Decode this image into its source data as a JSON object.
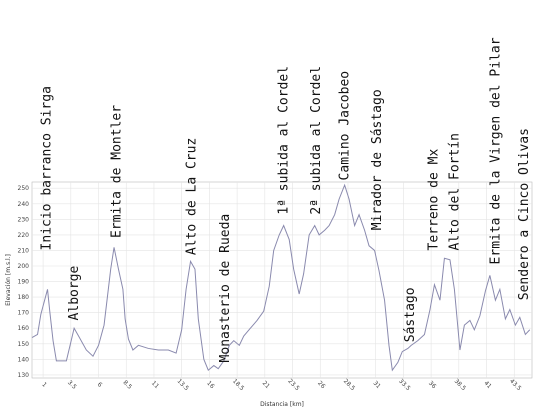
{
  "chart_data": {
    "type": "line",
    "xlabel": "Distancia [km]",
    "ylabel": "Elevación [m.s.l.]",
    "x": [
      0,
      0.5,
      0.8,
      1.4,
      1.6,
      1.9,
      2.2,
      3.1,
      3.8,
      4.2,
      4.9,
      5.5,
      6.0,
      6.5,
      7.1,
      7.4,
      7.8,
      8.2,
      8.4,
      8.7,
      9.1,
      9.6,
      10.5,
      11.4,
      12.3,
      13.0,
      13.5,
      13.9,
      14.3,
      14.7,
      15.0,
      15.5,
      15.9,
      16.4,
      16.8,
      17.3,
      17.8,
      18.2,
      18.7,
      19.1,
      19.7,
      20.3,
      20.9,
      21.4,
      21.8,
      22.3,
      22.7,
      23.2,
      23.6,
      24.1,
      24.5,
      25.0,
      25.5,
      25.9,
      26.4,
      26.8,
      27.3,
      27.7,
      28.2,
      28.6,
      29.1,
      29.5,
      30.0,
      30.4,
      30.9,
      31.3,
      31.8,
      32.2,
      32.5,
      33.0,
      33.4,
      33.9,
      34.2,
      34.8,
      35.4,
      35.9,
      36.3,
      36.8,
      37.2,
      37.7,
      38.1,
      38.6,
      39.0,
      39.5,
      39.9,
      40.4,
      40.9,
      41.3,
      41.8,
      42.2,
      42.7,
      43.1,
      43.6,
      44.0,
      44.5,
      44.9
    ],
    "series": [
      {
        "name": "Elevación",
        "color": "#8a8aae",
        "values": [
          154,
          156,
          169,
          185,
          171,
          152,
          139,
          139,
          160,
          155,
          146,
          142,
          149,
          162,
          198,
          212,
          198,
          185,
          166,
          153,
          146,
          149,
          147,
          146,
          146,
          144,
          159,
          185,
          203,
          198,
          166,
          140,
          133,
          136,
          134,
          139,
          149,
          152,
          149,
          155,
          160,
          165,
          171,
          187,
          210,
          220,
          226,
          217,
          198,
          182,
          195,
          220,
          226,
          220,
          223,
          226,
          233,
          243,
          252,
          243,
          226,
          233,
          223,
          213,
          210,
          197,
          178,
          149,
          133,
          138,
          145,
          147,
          149,
          152,
          156,
          172,
          188,
          178,
          205,
          204,
          185,
          146,
          162,
          165,
          159,
          168,
          184,
          194,
          178,
          185,
          166,
          172,
          162,
          167,
          156,
          159
        ]
      }
    ],
    "xlim": [
      0,
      45.1
    ],
    "ylim": [
      128,
      254
    ],
    "xticks": [
      1,
      3.5,
      6,
      8.5,
      11,
      13.5,
      16,
      18.5,
      21,
      23.5,
      26,
      28.5,
      31,
      33.5,
      36,
      38.5,
      41,
      43.5
    ],
    "yticks": [
      130,
      140,
      150,
      160,
      170,
      180,
      190,
      200,
      210,
      220,
      230,
      240,
      250
    ],
    "grid": true,
    "annotations": [
      {
        "text": "Inicio barranco Sirga",
        "x": 1.3,
        "y": 210
      },
      {
        "text": "Alborge",
        "x": 3.8,
        "y": 165
      },
      {
        "text": "Ermita de Montler",
        "x": 7.6,
        "y": 218
      },
      {
        "text": "Alto de La Cruz",
        "x": 14.4,
        "y": 207
      },
      {
        "text": "Monasterio de Rueda",
        "x": 17.4,
        "y": 138
      },
      {
        "text": "1ª subida al Cordel",
        "x": 22.7,
        "y": 233
      },
      {
        "text": "2ª subida al Cordel",
        "x": 25.6,
        "y": 233
      },
      {
        "text": "Camino Jacobeo",
        "x": 28.2,
        "y": 255
      },
      {
        "text": "Mirador de Sástago",
        "x": 31.1,
        "y": 223
      },
      {
        "text": "Sástago",
        "x": 34.1,
        "y": 151
      },
      {
        "text": "Terreno de Mx",
        "x": 36.2,
        "y": 210
      },
      {
        "text": "Alto del Fortín",
        "x": 38.1,
        "y": 210
      },
      {
        "text": "Ermita de la Virgen del Pilar",
        "x": 41.8,
        "y": 201
      },
      {
        "text": "Sendero a Cinco Olivas",
        "x": 44.4,
        "y": 178
      }
    ]
  }
}
